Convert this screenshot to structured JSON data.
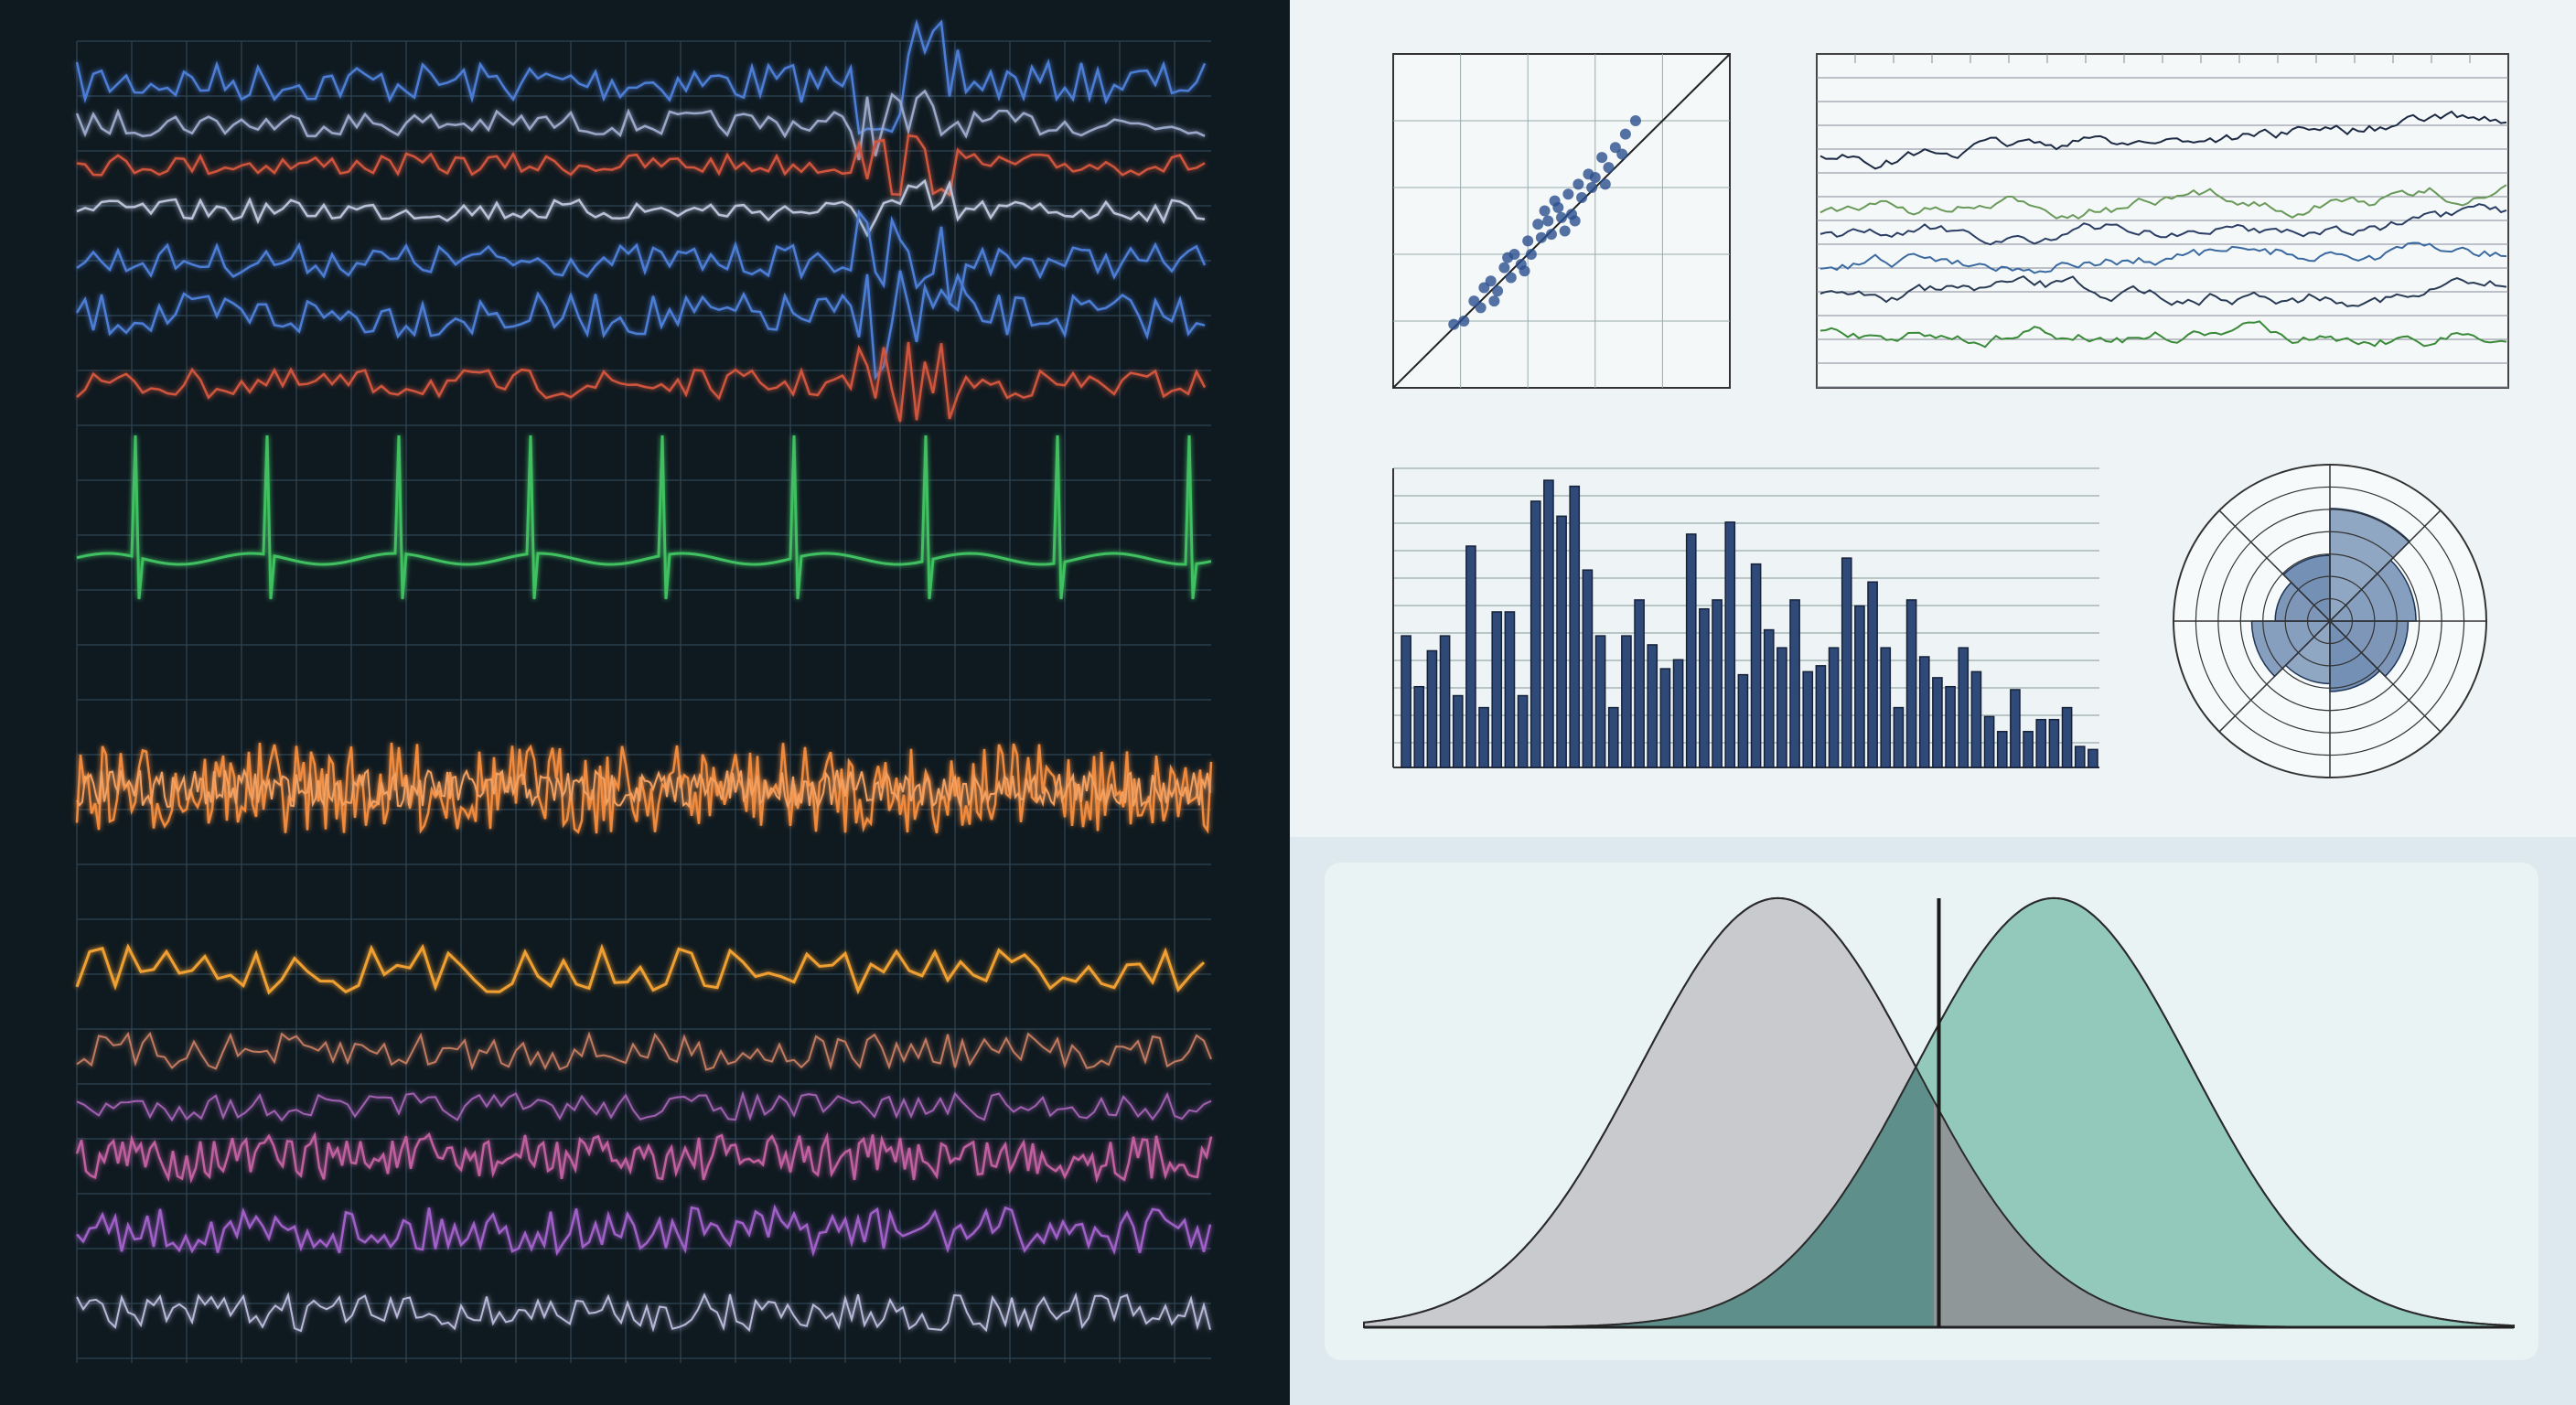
{
  "chart_data": [
    {
      "type": "scatter",
      "x": [
        1.8,
        2.1,
        2.4,
        2.6,
        2.9,
        3.1,
        3.3,
        3.5,
        3.6,
        3.8,
        4.0,
        4.1,
        4.3,
        4.4,
        4.6,
        4.7,
        4.9,
        5.0,
        5.2,
        5.3,
        5.5,
        5.6,
        5.8,
        6.0,
        6.2,
        6.4,
        6.6,
        6.9,
        3.0,
        4.5,
        5.1,
        5.9,
        2.7,
        3.9,
        6.3,
        4.8,
        5.4,
        3.4,
        6.8,
        7.2
      ],
      "values": [
        1.9,
        2.0,
        2.6,
        2.4,
        3.2,
        2.9,
        3.6,
        3.3,
        4.0,
        3.7,
        4.4,
        4.0,
        4.9,
        4.5,
        5.0,
        4.6,
        5.4,
        5.1,
        5.8,
        5.2,
        6.1,
        5.7,
        6.4,
        6.3,
        6.9,
        6.6,
        7.2,
        7.6,
        2.6,
        5.3,
        4.7,
        6.0,
        3.0,
        3.5,
        6.1,
        5.6,
        5.0,
        3.9,
        7.0,
        8.0
      ],
      "color": "#2c4f8f",
      "xlim": [
        0,
        10
      ],
      "ylim": [
        0,
        10
      ]
    },
    {
      "type": "bar",
      "values": [
        44,
        27,
        39,
        44,
        24,
        74,
        20,
        52,
        52,
        24,
        89,
        96,
        84,
        94,
        66,
        44,
        20,
        44,
        56,
        41,
        33,
        36,
        78,
        53,
        56,
        82,
        31,
        68,
        46,
        40,
        56,
        32,
        34,
        40,
        70,
        54,
        62,
        40,
        20,
        56,
        37,
        30,
        27,
        40,
        32,
        17,
        12,
        26,
        12,
        16,
        16,
        20,
        7,
        6
      ],
      "color": "#2f4a78",
      "ylim": [
        0,
        100
      ]
    },
    {
      "type": "polar",
      "values": [
        0.72,
        0.55,
        0.5,
        0.45,
        0.4,
        0.5,
        0.35,
        0.42
      ],
      "color": "#3d6296",
      "ylim": [
        0,
        1
      ]
    },
    {
      "type": "density",
      "xlim": [
        0,
        100
      ],
      "ylim": [
        0,
        0.036
      ],
      "threshold": 50,
      "series": [
        {
          "mean": 36,
          "sd": 12,
          "color": "#c8cacd"
        },
        {
          "mean": 60,
          "sd": 12,
          "color": "#93c9ba"
        }
      ]
    }
  ]
}
